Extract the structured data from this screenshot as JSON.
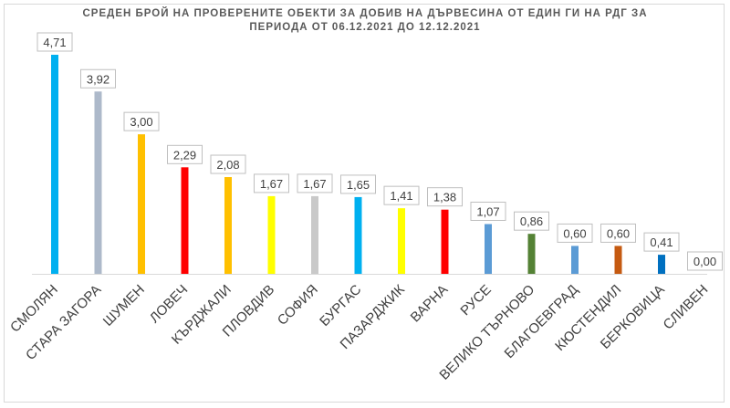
{
  "chart_data": {
    "type": "bar",
    "title": "СРЕДЕН БРОЙ НА ПРОВЕРЕНИТЕ ОБЕКТИ ЗА ДОБИВ НА ДЪРВЕСИНА ОТ ЕДИН ГИ НА РДГ ЗА ПЕРИОДА ОТ 06.12.2021 ДО 12.12.2021",
    "categories": [
      "СМОЛЯН",
      "СТАРА ЗАГОРА",
      "ШУМЕН",
      "ЛОВЕЧ",
      "КЪРДЖАЛИ",
      "ПЛОВДИВ",
      "СОФИЯ",
      "БУРГАС",
      "ПАЗАРДЖИК",
      "ВАРНА",
      "РУСЕ",
      "ВЕЛИКО ТЪРНОВО",
      "БЛАГОЕВГРАД",
      "КЮСТЕНДИЛ",
      "БЕРКОВИЦА",
      "СЛИВЕН"
    ],
    "values": [
      4.71,
      3.92,
      3.0,
      2.29,
      2.08,
      1.67,
      1.67,
      1.65,
      1.41,
      1.38,
      1.07,
      0.86,
      0.6,
      0.6,
      0.41,
      0.0
    ],
    "value_labels": [
      "4,71",
      "3,92",
      "3,00",
      "2,29",
      "2,08",
      "1,67",
      "1,67",
      "1,65",
      "1,41",
      "1,38",
      "1,07",
      "0,86",
      "0,60",
      "0,60",
      "0,41",
      "0,00"
    ],
    "colors": [
      "#00b0f0",
      "#adb9ca",
      "#ffc000",
      "#ff0000",
      "#ffc000",
      "#ffff00",
      "#c9c9c9",
      "#00b0f0",
      "#ffff00",
      "#ff0000",
      "#5b9bd5",
      "#548235",
      "#5b9bd5",
      "#c55a11",
      "#0070c0",
      "#7f7f7f"
    ],
    "ylim": [
      0,
      5
    ],
    "grid": false,
    "legend": "none"
  }
}
